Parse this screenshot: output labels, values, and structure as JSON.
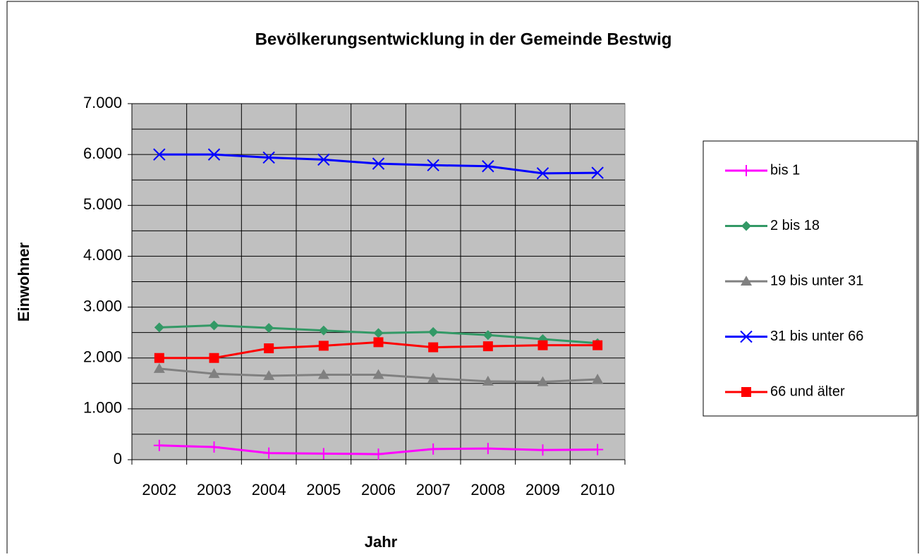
{
  "chart_data": {
    "type": "line",
    "title": "Bevölkerungsentwicklung in der Gemeinde Bestwig",
    "x_label": "Jahr",
    "y_label": "Einwohner",
    "categories": [
      "2002",
      "2003",
      "2004",
      "2005",
      "2006",
      "2007",
      "2008",
      "2009",
      "2010"
    ],
    "series": [
      {
        "name": "bis 1",
        "color": "#ff00ff",
        "marker": "plus",
        "values": [
          280,
          250,
          130,
          120,
          110,
          210,
          220,
          190,
          200
        ]
      },
      {
        "name": "2 bis 18",
        "color": "#339966",
        "marker": "diamond",
        "values": [
          2600,
          2640,
          2590,
          2540,
          2490,
          2510,
          2450,
          2370,
          2290
        ]
      },
      {
        "name": "19 bis unter 31",
        "color": "#808080",
        "marker": "triangle",
        "values": [
          1790,
          1690,
          1650,
          1670,
          1670,
          1600,
          1540,
          1530,
          1580
        ]
      },
      {
        "name": "31 bis unter 66",
        "color": "#0000ff",
        "marker": "x",
        "values": [
          6000,
          6000,
          5940,
          5900,
          5820,
          5790,
          5770,
          5630,
          5640
        ]
      },
      {
        "name": "66 und älter",
        "color": "#ff0000",
        "marker": "square",
        "values": [
          2000,
          2000,
          2190,
          2240,
          2310,
          2210,
          2230,
          2250,
          2250
        ]
      }
    ],
    "ylim": [
      0,
      7000
    ],
    "yticks": [
      0,
      {
        "value": 1000,
        "label": "1.000"
      },
      {
        "value": 2000,
        "label": "2.000"
      },
      {
        "value": 3000,
        "label": "3.000"
      },
      {
        "value": 4000,
        "label": "4.000"
      },
      {
        "value": 5000,
        "label": "5.000"
      },
      {
        "value": 6000,
        "label": "6.000"
      },
      {
        "value": 7000,
        "label": "7.000"
      }
    ],
    "yminorticks": [
      500,
      1500,
      2500,
      3500,
      4500,
      5500,
      6500
    ],
    "grid": true,
    "legend": "right"
  }
}
